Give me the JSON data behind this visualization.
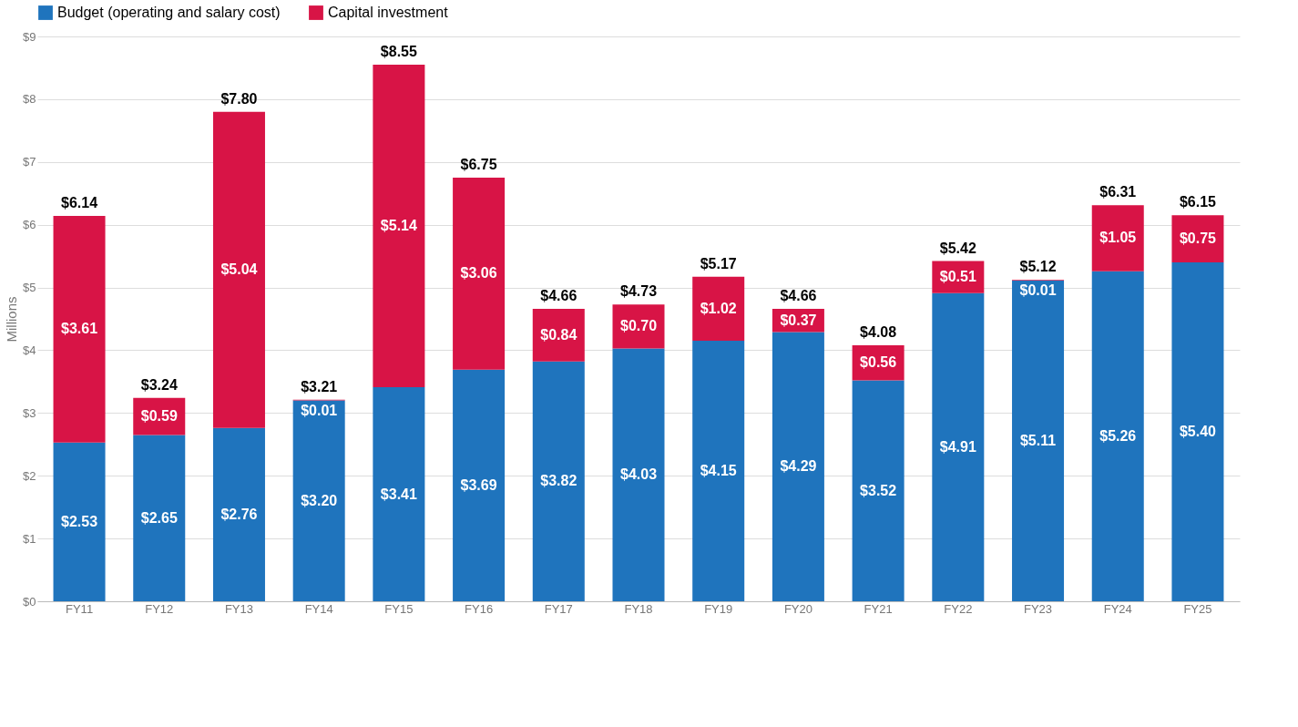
{
  "chart_data": {
    "type": "bar",
    "stacked": true,
    "ylabel": "Millions",
    "categories": [
      "FY11",
      "FY12",
      "FY13",
      "FY14",
      "FY15",
      "FY16",
      "FY17",
      "FY18",
      "FY19",
      "FY20",
      "FY21",
      "FY22",
      "FY23",
      "FY24",
      "FY25"
    ],
    "series": [
      {
        "name": "Budget (operating and salary cost)",
        "color": "#1f74bd",
        "values": [
          2.53,
          2.65,
          2.76,
          3.2,
          3.41,
          3.69,
          3.82,
          4.03,
          4.15,
          4.29,
          3.52,
          4.91,
          5.11,
          5.26,
          5.4
        ],
        "value_labels": [
          "$2.53",
          "$2.65",
          "$2.76",
          "$3.20",
          "$3.41",
          "$3.69",
          "$3.82",
          "$4.03",
          "$4.15",
          "$4.29",
          "$3.52",
          "$4.91",
          "$5.11",
          "$5.26",
          "$5.40"
        ]
      },
      {
        "name": "Capital investment",
        "color": "#d81446",
        "values": [
          3.61,
          0.59,
          5.04,
          0.01,
          5.14,
          3.06,
          0.84,
          0.7,
          1.02,
          0.37,
          0.56,
          0.51,
          0.01,
          1.05,
          0.75
        ],
        "value_labels": [
          "$3.61",
          "$0.59",
          "$5.04",
          "$0.01",
          "$5.14",
          "$3.06",
          "$0.84",
          "$0.70",
          "$1.02",
          "$0.37",
          "$0.56",
          "$0.51",
          "$0.01",
          "$1.05",
          "$0.75"
        ]
      }
    ],
    "totals": [
      "$6.14",
      "$3.24",
      "$7.80",
      "$3.21",
      "$8.55",
      "$6.75",
      "$4.66",
      "$4.73",
      "$5.17",
      "$4.66",
      "$4.08",
      "$5.42",
      "$5.12",
      "$6.31",
      "$6.15"
    ],
    "ylim": [
      0,
      9
    ],
    "yticks": [
      {
        "value": 0,
        "label": "$0"
      },
      {
        "value": 1,
        "label": "$1"
      },
      {
        "value": 2,
        "label": "$2"
      },
      {
        "value": 3,
        "label": "$3"
      },
      {
        "value": 4,
        "label": "$4"
      },
      {
        "value": 5,
        "label": "$5"
      },
      {
        "value": 6,
        "label": "$6"
      },
      {
        "value": 7,
        "label": "$7"
      },
      {
        "value": 8,
        "label": "$8"
      },
      {
        "value": 9,
        "label": "$9"
      }
    ],
    "grid": "y",
    "legend": "top left"
  }
}
